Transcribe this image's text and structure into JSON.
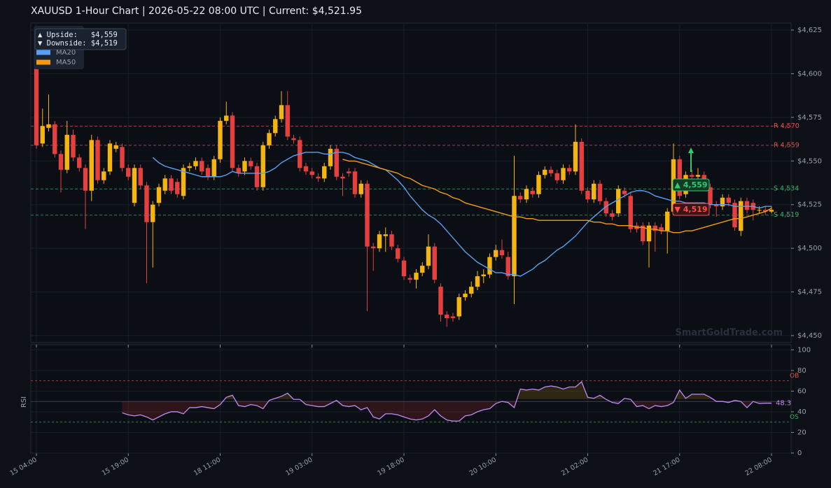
{
  "chart_data": [
    {
      "type": "candlestick",
      "title": "XAUUSD  1-Hour Chart  |  2026-05-22 08:00 UTC  |  Current: $4,521.95",
      "categories": [
        "15 04:00",
        null,
        null,
        null,
        null,
        null,
        null,
        null,
        null,
        null,
        null,
        null,
        null,
        null,
        null,
        "15 19:00",
        null,
        null,
        null,
        null,
        null,
        null,
        null,
        null,
        null,
        null,
        null,
        null,
        null,
        null,
        "18 11:00",
        null,
        null,
        null,
        null,
        null,
        null,
        null,
        null,
        null,
        null,
        null,
        null,
        null,
        null,
        "19 03:00",
        null,
        null,
        null,
        null,
        null,
        null,
        null,
        null,
        null,
        null,
        null,
        null,
        null,
        null,
        "19 18:00",
        null,
        null,
        null,
        null,
        null,
        null,
        null,
        null,
        null,
        null,
        null,
        null,
        null,
        null,
        "20 10:00",
        null,
        null,
        null,
        null,
        null,
        null,
        null,
        null,
        null,
        null,
        null,
        null,
        null,
        null,
        "21 02:00",
        null,
        null,
        null,
        null,
        null,
        null,
        null,
        null,
        null,
        null,
        null,
        null,
        null,
        null,
        "21 17:00",
        null,
        null,
        null,
        null,
        null,
        null,
        null,
        null,
        null,
        null,
        null,
        null,
        null,
        null,
        "22 08:00"
      ],
      "open": [
        4606,
        4560,
        4569,
        4571,
        4554,
        4545,
        4565,
        4552,
        4546,
        4533,
        4562,
        4539,
        4544,
        4557,
        4558,
        4546,
        4526,
        4546,
        4536,
        4515,
        4526,
        4533,
        4540,
        4538,
        4530,
        4546,
        4547,
        4550,
        4546,
        4541,
        4551,
        4573,
        4576,
        4546,
        4544,
        4550,
        4547,
        4535,
        4559,
        4566,
        4574,
        4582,
        4563,
        4562,
        4547,
        4544,
        4541,
        4540,
        4547,
        4557,
        4541,
        4544,
        4544,
        4531,
        4537,
        4501,
        4500,
        4507,
        4508,
        4500,
        4493,
        4483,
        4482,
        4486,
        4490,
        4501,
        4478,
        4462,
        4461,
        4461,
        4472,
        4474,
        4478,
        4484,
        4485,
        4495,
        4499,
        4495,
        4484,
        4530,
        4528,
        4533,
        4531,
        4542,
        4545,
        4543,
        4539,
        4546,
        4544,
        4561,
        4533,
        4528,
        4537,
        4527,
        4520,
        4520,
        4533,
        4530,
        4513,
        4513,
        4504,
        4513,
        4512,
        4510,
        4521,
        4551,
        4531,
        4542,
        4541,
        4542,
        4535,
        4525,
        4524,
        4529,
        4526,
        4510,
        4527,
        4526,
        4522,
        4522,
        4521
      ],
      "high": [
        4612,
        4580,
        4588,
        4573,
        4556,
        4573,
        4568,
        4554,
        4548,
        4565,
        4564,
        4546,
        4562,
        4561,
        4560,
        4548,
        4548,
        4548,
        4538,
        4527,
        4537,
        4542,
        4542,
        4540,
        4548,
        4549,
        4552,
        4552,
        4548,
        4553,
        4575,
        4584,
        4578,
        4548,
        4552,
        4552,
        4549,
        4561,
        4568,
        4576,
        4590,
        4590,
        4565,
        4564,
        4549,
        4546,
        4543,
        4549,
        4559,
        4559,
        4543,
        4546,
        4546,
        4539,
        4539,
        4503,
        4510,
        4512,
        4510,
        4502,
        4495,
        4485,
        4488,
        4492,
        4508,
        4503,
        4480,
        4464,
        4463,
        4474,
        4476,
        4481,
        4487,
        4488,
        4497,
        4502,
        4505,
        4498,
        4553,
        4532,
        4536,
        4535,
        4544,
        4547,
        4547,
        4545,
        4548,
        4548,
        4571,
        4563,
        4535,
        4539,
        4539,
        4529,
        4522,
        4536,
        4535,
        4532,
        4515,
        4515,
        4515,
        4515,
        4514,
        4523,
        4560,
        4553,
        4544,
        4545,
        4546,
        4544,
        4537,
        4527,
        4531,
        4531,
        4528,
        4529,
        4529,
        4528,
        4524,
        4524,
        4524
      ],
      "low": [
        4557,
        4558,
        4567,
        4552,
        4532,
        4543,
        4550,
        4544,
        4511,
        4527,
        4537,
        4537,
        4542,
        4555,
        4544,
        4539,
        4524,
        4534,
        4480,
        4489,
        4524,
        4531,
        4531,
        4529,
        4528,
        4544,
        4545,
        4542,
        4539,
        4539,
        4549,
        4571,
        4544,
        4541,
        4542,
        4545,
        4533,
        4533,
        4557,
        4564,
        4572,
        4562,
        4560,
        4544,
        4542,
        4540,
        4538,
        4538,
        4545,
        4539,
        4530,
        4541,
        4529,
        4529,
        4464,
        4487,
        4498,
        4498,
        4499,
        4492,
        4482,
        4480,
        4477,
        4484,
        4488,
        4480,
        4458,
        4455,
        4458,
        4459,
        4470,
        4472,
        4476,
        4480,
        4483,
        4493,
        4494,
        4482,
        4468,
        4526,
        4526,
        4529,
        4529,
        4540,
        4541,
        4537,
        4537,
        4542,
        4542,
        4531,
        4526,
        4526,
        4525,
        4518,
        4516,
        4518,
        4529,
        4509,
        4509,
        4502,
        4489,
        4498,
        4508,
        4497,
        4519,
        4528,
        4529,
        4539,
        4539,
        4533,
        4523,
        4518,
        4522,
        4524,
        4510,
        4507,
        4520,
        4516,
        4520,
        4519,
        4520
      ],
      "close": [
        4559,
        4570,
        4571,
        4554,
        4545,
        4565,
        4552,
        4546,
        4533,
        4562,
        4539,
        4544,
        4560,
        4559,
        4546,
        4541,
        4546,
        4536,
        4515,
        4525,
        4535,
        4540,
        4533,
        4531,
        4546,
        4547,
        4550,
        4544,
        4541,
        4551,
        4573,
        4576,
        4546,
        4543,
        4550,
        4547,
        4535,
        4559,
        4566,
        4574,
        4582,
        4564,
        4562,
        4546,
        4544,
        4542,
        4540,
        4547,
        4557,
        4541,
        4540,
        4543,
        4531,
        4537,
        4501,
        4500,
        4508,
        4508,
        4501,
        4494,
        4484,
        4482,
        4486,
        4490,
        4501,
        4482,
        4462,
        4460,
        4460,
        4472,
        4474,
        4478,
        4484,
        4485,
        4495,
        4499,
        4496,
        4484,
        4530,
        4528,
        4534,
        4531,
        4542,
        4545,
        4543,
        4539,
        4546,
        4544,
        4561,
        4533,
        4528,
        4537,
        4527,
        4520,
        4518,
        4534,
        4531,
        4511,
        4511,
        4504,
        4513,
        4510,
        4510,
        4521,
        4551,
        4530,
        4542,
        4541,
        4542,
        4535,
        4525,
        4524,
        4529,
        4526,
        4512,
        4527,
        4522,
        4522,
        4522,
        4521,
        4522
      ],
      "up_color": "#f5b50f",
      "down_color": "#e5403f",
      "ylim": [
        4446,
        4629
      ],
      "yticks": [
        {
          "value": 4450,
          "label": "$4,450"
        },
        {
          "value": 4475,
          "label": "$4,475"
        },
        {
          "value": 4500,
          "label": "$4,500"
        },
        {
          "value": 4525,
          "label": "$4,525"
        },
        {
          "value": 4550,
          "label": "$4,550"
        },
        {
          "value": 4575,
          "label": "$4,575"
        },
        {
          "value": 4600,
          "label": "$4,600"
        },
        {
          "value": 4625,
          "label": "$4,625"
        }
      ],
      "grid": true,
      "series": [
        {
          "name": "MA20",
          "color": "#5aa0f0",
          "values": [
            null,
            null,
            null,
            null,
            null,
            null,
            null,
            null,
            null,
            null,
            null,
            null,
            null,
            null,
            null,
            null,
            null,
            null,
            null,
            4552,
            4549,
            4547,
            4546,
            4545,
            4544,
            4543,
            4542,
            4541,
            4541,
            4541,
            4541,
            4542,
            4544,
            4543,
            4543,
            4543,
            4543,
            4543,
            4544,
            4546,
            4549,
            4551,
            4553,
            4554,
            4555,
            4555,
            4555,
            4554,
            4554,
            4555,
            4555,
            4554,
            4552,
            4551,
            4550,
            4548,
            4546,
            4545,
            4542,
            4539,
            4535,
            4530,
            4526,
            4522,
            4519,
            4517,
            4514,
            4510,
            4506,
            4502,
            4498,
            4495,
            4492,
            4490,
            4488,
            4486,
            4486,
            4485,
            4485,
            4484,
            4486,
            4488,
            4491,
            4493,
            4496,
            4499,
            4501,
            4504,
            4507,
            4511,
            4515,
            4518,
            4521,
            4524,
            4526,
            4528,
            4530,
            4532,
            4533,
            4533,
            4532,
            4530,
            4529,
            4528,
            4527,
            4527,
            4526,
            4526,
            4526,
            4526,
            4525,
            4525,
            4525,
            4525,
            4524,
            4524,
            4524,
            4524,
            4523,
            4524,
            4524
          ]
        },
        {
          "name": "MA50",
          "color": "#f39c12",
          "values": [
            null,
            null,
            null,
            null,
            null,
            null,
            null,
            null,
            null,
            null,
            null,
            null,
            null,
            null,
            null,
            null,
            null,
            null,
            null,
            null,
            null,
            null,
            null,
            null,
            null,
            null,
            null,
            null,
            null,
            null,
            null,
            null,
            null,
            null,
            null,
            null,
            null,
            null,
            null,
            null,
            null,
            null,
            null,
            null,
            null,
            null,
            null,
            null,
            null,
            null,
            4551,
            4550,
            4550,
            4549,
            4548,
            4547,
            4546,
            4545,
            4544,
            4543,
            4541,
            4540,
            4538,
            4536,
            4535,
            4534,
            4532,
            4531,
            4529,
            4528,
            4526,
            4525,
            4524,
            4523,
            4522,
            4521,
            4520,
            4519,
            4518,
            4518,
            4517,
            4517,
            4516,
            4516,
            4516,
            4516,
            4516,
            4516,
            4516,
            4516,
            4516,
            4515,
            4515,
            4514,
            4514,
            4513,
            4513,
            4513,
            4512,
            4512,
            4511,
            4511,
            4510,
            4510,
            4509,
            4509,
            4510,
            4510,
            4511,
            4512,
            4513,
            4514,
            4515,
            4516,
            4517,
            4517,
            4518,
            4519,
            4520,
            4521,
            4523
          ]
        }
      ],
      "levels": [
        {
          "label": "R 4,570",
          "value": 4570,
          "color": "#d9534f"
        },
        {
          "label": "R 4,559",
          "value": 4559,
          "color": "#d9534f"
        },
        {
          "label": "S 4,534",
          "value": 4534,
          "color": "#2fb36a"
        },
        {
          "label": "S 4,519",
          "value": 4519,
          "color": "#2fb36a"
        }
      ],
      "annotations": [
        {
          "label": "▲ 4,559",
          "color": "#2ecc71",
          "fill": "#123a24"
        },
        {
          "label": "▼ 4,519",
          "color": "#ff4d4d",
          "fill": "#3a1416"
        }
      ],
      "info_box": [
        "▲ Upside:   $4,559",
        "▼ Downside: $4,519"
      ],
      "watermark": "SmartGoldTrade.com"
    },
    {
      "type": "line",
      "y_label": "RSI",
      "color": "#c08af5",
      "values": [
        null,
        null,
        null,
        null,
        null,
        null,
        null,
        null,
        null,
        null,
        null,
        null,
        null,
        null,
        39,
        37,
        36,
        37,
        35,
        32,
        35,
        38,
        40,
        40,
        38,
        44,
        44,
        45,
        44,
        43,
        47,
        54,
        56,
        46,
        45,
        47,
        46,
        43,
        51,
        53,
        55,
        58,
        52,
        52,
        47,
        46,
        45,
        45,
        48,
        51,
        46,
        45,
        46,
        42,
        44,
        35,
        33,
        38,
        38,
        37,
        35,
        33,
        32,
        33,
        36,
        42,
        36,
        32,
        31,
        31,
        36,
        37,
        40,
        42,
        43,
        48,
        50,
        49,
        44,
        62,
        61,
        62,
        61,
        64,
        65,
        64,
        62,
        64,
        64,
        69,
        54,
        53,
        56,
        52,
        49,
        48,
        53,
        52,
        45,
        46,
        43,
        46,
        45,
        46,
        49,
        61,
        53,
        57,
        57,
        57,
        54,
        50,
        50,
        49,
        51,
        50,
        44,
        50,
        48,
        48.3,
        48.3
      ],
      "ylim": [
        0,
        105
      ],
      "yticks": [
        0,
        20,
        40,
        60,
        80,
        100
      ],
      "grid": true,
      "midline": 50,
      "levels": [
        {
          "label": "OB",
          "value": 70,
          "color": "#d9534f"
        },
        {
          "label": "OS",
          "value": 30,
          "color": "#2fb36a"
        }
      ]
    }
  ]
}
